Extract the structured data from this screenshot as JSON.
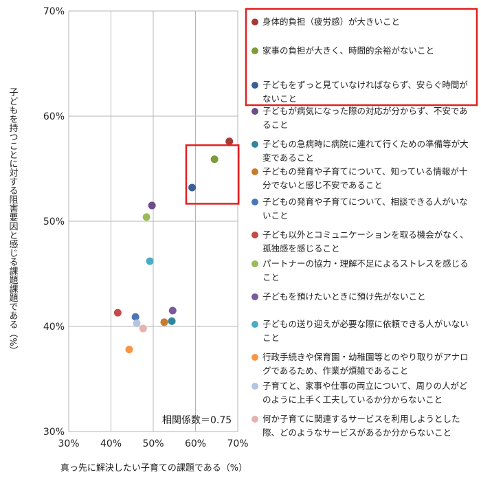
{
  "chart_data": {
    "type": "scatter",
    "xlabel": "真っ先に解決したい子育ての課題である（%）",
    "ylabel": "子どもを持つことに対する阻害要因と感じる課題課題である（%）",
    "xlim": [
      30,
      70
    ],
    "ylim": [
      30,
      70
    ],
    "x_ticks": [
      "30%",
      "40%",
      "50%",
      "60%",
      "70%"
    ],
    "y_ticks": [
      "30%",
      "40%",
      "50%",
      "60%",
      "70%"
    ],
    "grid": true,
    "legend_position": "right",
    "annotation": "相関係数＝0.75",
    "series": [
      {
        "name": "身体的負担（疲労感）が大きいこと",
        "color": "#a23b36",
        "x": 68.0,
        "y": 57.6
      },
      {
        "name": "家事の負担が大きく、時間的余裕がないこと",
        "color": "#7f9a3a",
        "x": 64.5,
        "y": 55.9
      },
      {
        "name": "子どもをずっと見ていなければならず、安らぐ時間がないこと",
        "color": "#3b5f95",
        "x": 59.2,
        "y": 53.2
      },
      {
        "name": "子どもが病気になった際の対応が分からず、不安であること",
        "color": "#6a4e8a",
        "x": 49.7,
        "y": 51.5
      },
      {
        "name": "子どもの急病時に病院に連れて行くための準備等が大変であること",
        "color": "#31859c",
        "x": 54.4,
        "y": 40.5
      },
      {
        "name": "子どもの発育や子育てについて、知っている情報が十分でないと感じ不安であること",
        "color": "#c87b2e",
        "x": 52.6,
        "y": 40.4
      },
      {
        "name": "子どもの発育や子育てについて、相談できる人がいないこと",
        "color": "#4a76b8",
        "x": 45.8,
        "y": 40.9
      },
      {
        "name": "子ども以外とコミュニケーションを取る機会がなく、孤独感を感じること",
        "color": "#c24a47",
        "x": 41.6,
        "y": 41.3
      },
      {
        "name": "パートナーの協力・理解不足によるストレスを感じること",
        "color": "#9bbb59",
        "x": 48.4,
        "y": 50.4
      },
      {
        "name": "子どもを預けたいときに預け先がないこと",
        "color": "#7a5a9e",
        "x": 54.6,
        "y": 41.5
      },
      {
        "name": "子どもの送り迎えが必要な際に依頼できる人がいないこと",
        "color": "#4bacc6",
        "x": 49.2,
        "y": 46.2
      },
      {
        "name": "行政手続きや保育園・幼稚園等とのやり取りがアナログであるため、作業が煩雑であること",
        "color": "#f79646",
        "x": 44.3,
        "y": 37.8
      },
      {
        "name": "子育てと、家事や仕事の両立について、周りの人がどのように上手く工夫しているか分からないこと",
        "color": "#b5c4e0",
        "x": 46.1,
        "y": 40.3
      },
      {
        "name": "何か子育てに関連するサービスを利用しようとした際、どのようなサービスがあるか分からないこと",
        "color": "#e6b2b0",
        "x": 47.6,
        "y": 39.8
      }
    ],
    "highlight_color": "#e02020"
  }
}
